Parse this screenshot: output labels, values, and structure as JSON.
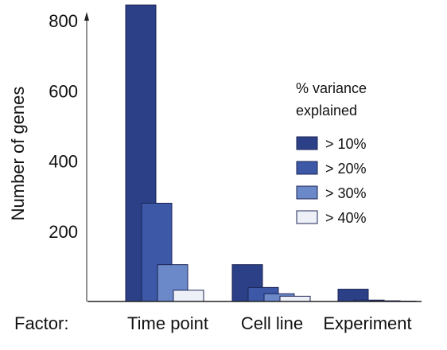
{
  "chart_data": {
    "type": "bar",
    "ylabel": "Number of genes",
    "xlabel": "Factor:",
    "ylim": [
      0,
      850
    ],
    "yticks": [
      200,
      400,
      600,
      800
    ],
    "categories": [
      "Time point",
      "Cell line",
      "Experiment"
    ],
    "legend": {
      "title_lines": [
        "% variance",
        "explained"
      ],
      "placement": "right"
    },
    "series": [
      {
        "name": "> 10%",
        "color": "#2b4087",
        "values": [
          845,
          105,
          35
        ]
      },
      {
        "name": "> 20%",
        "color": "#3c58a6",
        "values": [
          280,
          40,
          4
        ]
      },
      {
        "name": "> 30%",
        "color": "#6b88c8",
        "values": [
          105,
          22,
          2
        ]
      },
      {
        "name": "> 40%",
        "color": "#eef0f8",
        "values": [
          32,
          15,
          1
        ]
      }
    ]
  }
}
